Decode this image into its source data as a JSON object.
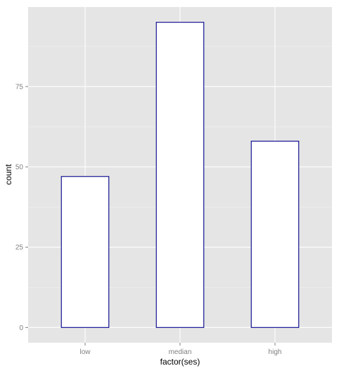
{
  "chart_data": {
    "type": "bar",
    "categories": [
      "low",
      "median",
      "high"
    ],
    "values": [
      47,
      95,
      58
    ],
    "xlabel": "factor(ses)",
    "ylabel": "count",
    "ylim": [
      -4.75,
      99.75
    ],
    "yticks": [
      0,
      25,
      50,
      75
    ],
    "grid": true,
    "legend": "none",
    "colors": {
      "panel": "#e5e5e5",
      "grid_major": "#ffffff",
      "grid_minor": "#f2f2f2",
      "bar_fill": "#ffffff",
      "bar_outline": "#00008b",
      "tick_text": "#7f7f7f"
    }
  }
}
